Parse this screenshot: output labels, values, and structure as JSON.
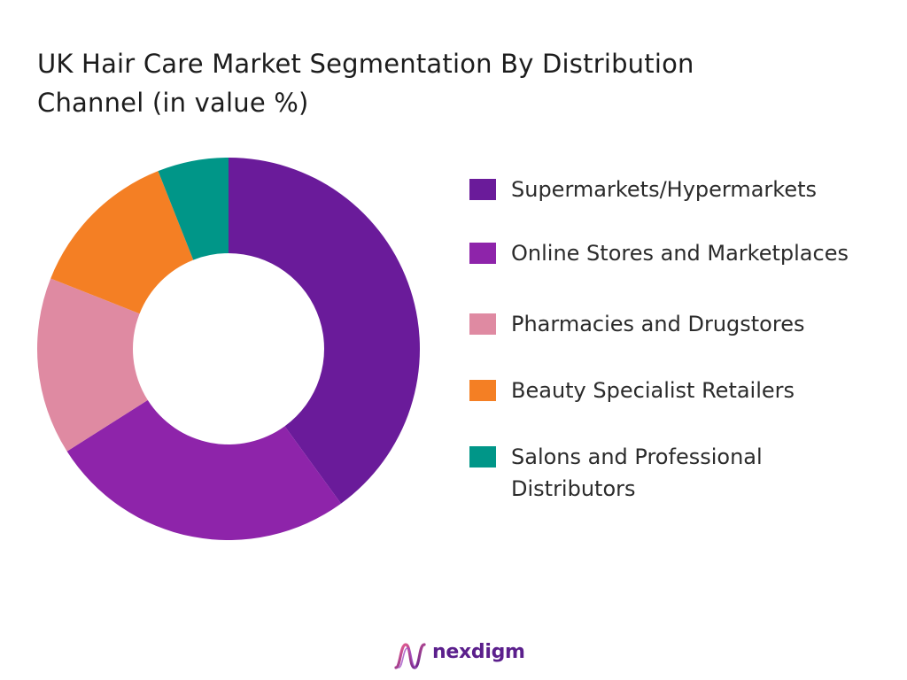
{
  "title": {
    "line1": "UK Hair Care Market Segmentation By Distribution",
    "line2": "Channel (in value %)"
  },
  "chart_data": {
    "type": "pie",
    "variant": "donut",
    "title": "UK Hair Care Market Segmentation By Distribution Channel (in value %)",
    "categories": [
      "Supermarkets/Hypermarkets",
      "Online Stores and Marketplaces",
      "Pharmacies and Drugstores",
      "Beauty Specialist Retailers",
      "Salons and Professional Distributors"
    ],
    "values": [
      40,
      26,
      15,
      13,
      6
    ],
    "colors": [
      "#6a1b9a",
      "#8e24aa",
      "#df8aa2",
      "#f47f24",
      "#009688"
    ],
    "legend_position": "right"
  },
  "legend": [
    {
      "label": "Supermarkets/Hypermarkets",
      "color": "#6a1b9a"
    },
    {
      "label": "Online Stores and Marketplaces",
      "color": "#8e24aa"
    },
    {
      "label": "Pharmacies and Drugstores",
      "color": "#df8aa2"
    },
    {
      "label": "Beauty Specialist Retailers",
      "color": "#f47f24"
    },
    {
      "label": "Salons and Professional Distributors",
      "color": "#009688"
    }
  ],
  "brand": {
    "name": "nexdigm",
    "logo_icon": "nexdigm-wave-logo",
    "color": "#5b1f8c"
  }
}
